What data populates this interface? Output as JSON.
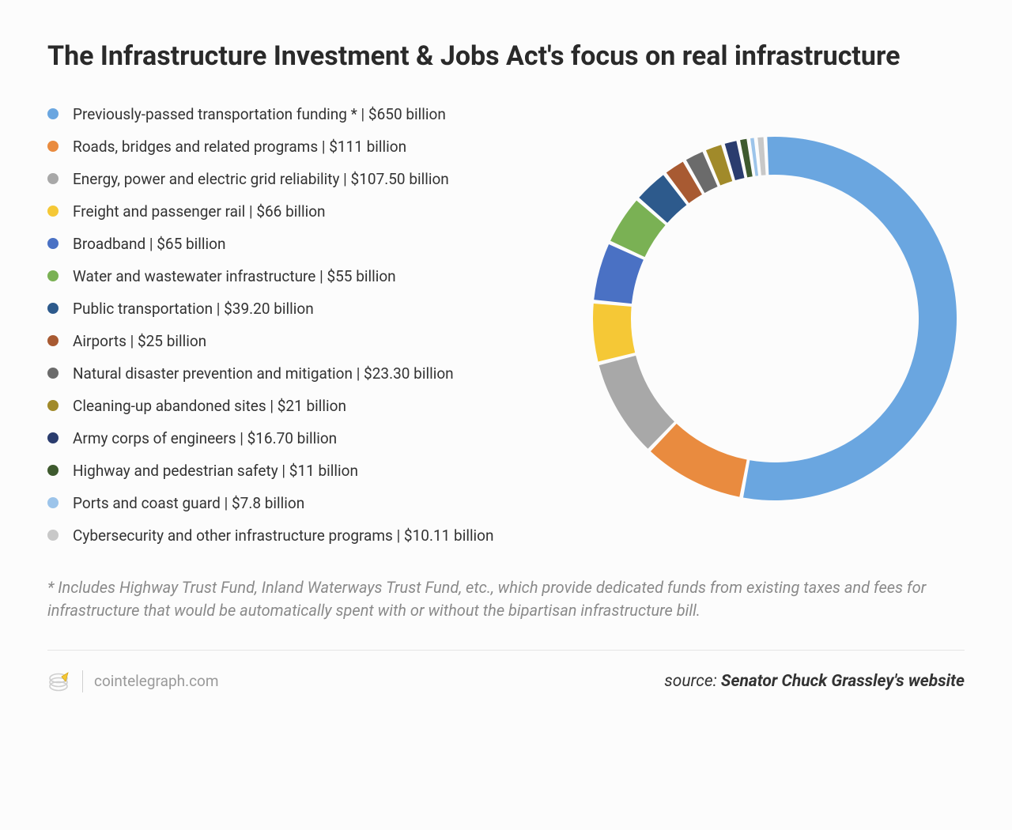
{
  "title": "The Infrastructure Investment & Jobs Act's focus on real infrastructure",
  "chart": {
    "type": "donut",
    "background": "#fcfcfc",
    "ring_thickness": 48,
    "outer_radius": 230,
    "gap_deg": 1.2,
    "start_angle_deg": -3,
    "items": [
      {
        "label": "Previously-passed transportation funding * | $650 billion",
        "value": 650,
        "color": "#6aa6e0"
      },
      {
        "label": "Roads, bridges and related programs | $111 billion",
        "value": 111,
        "color": "#e98b3f"
      },
      {
        "label": "Energy, power and electric grid reliability | $107.50 billion",
        "value": 107.5,
        "color": "#a8a8a8"
      },
      {
        "label": "Freight and passenger rail | $66 billion",
        "value": 66,
        "color": "#f5c836"
      },
      {
        "label": "Broadband | $65 billion",
        "value": 65,
        "color": "#4a71c4"
      },
      {
        "label": "Water and wastewater infrastructure | $55 billion",
        "value": 55,
        "color": "#7ab154"
      },
      {
        "label": "Public transportation | $39.20 billion",
        "value": 39.2,
        "color": "#2d5a8c"
      },
      {
        "label": "Airports | $25 billion",
        "value": 25,
        "color": "#a85a32"
      },
      {
        "label": "Natural disaster prevention and mitigation | $23.30 billion",
        "value": 23.3,
        "color": "#6b6b6b"
      },
      {
        "label": "Cleaning-up abandoned sites | $21 billion",
        "value": 21,
        "color": "#a18a2a"
      },
      {
        "label": "Army corps of engineers | $16.70 billion",
        "value": 16.7,
        "color": "#2a3c6e"
      },
      {
        "label": "Highway and pedestrian safety | $11 billion",
        "value": 11,
        "color": "#3e5a2e"
      },
      {
        "label": "Ports and coast guard | $7.8 billion",
        "value": 7.8,
        "color": "#9cc4ea"
      },
      {
        "label": "Cybersecurity and other infrastructure programs | $10.11 billion",
        "value": 10.11,
        "color": "#c8c8c8"
      }
    ]
  },
  "footnote": "* Includes Highway Trust Fund, Inland Waterways Trust Fund, etc., which provide dedicated funds from existing taxes and fees for infrastructure that would be automatically spent with or without the bipartisan infrastructure bill.",
  "brand": "cointelegraph.com",
  "source_label": "source: ",
  "source_name": "Senator Chuck Grassley's website"
}
